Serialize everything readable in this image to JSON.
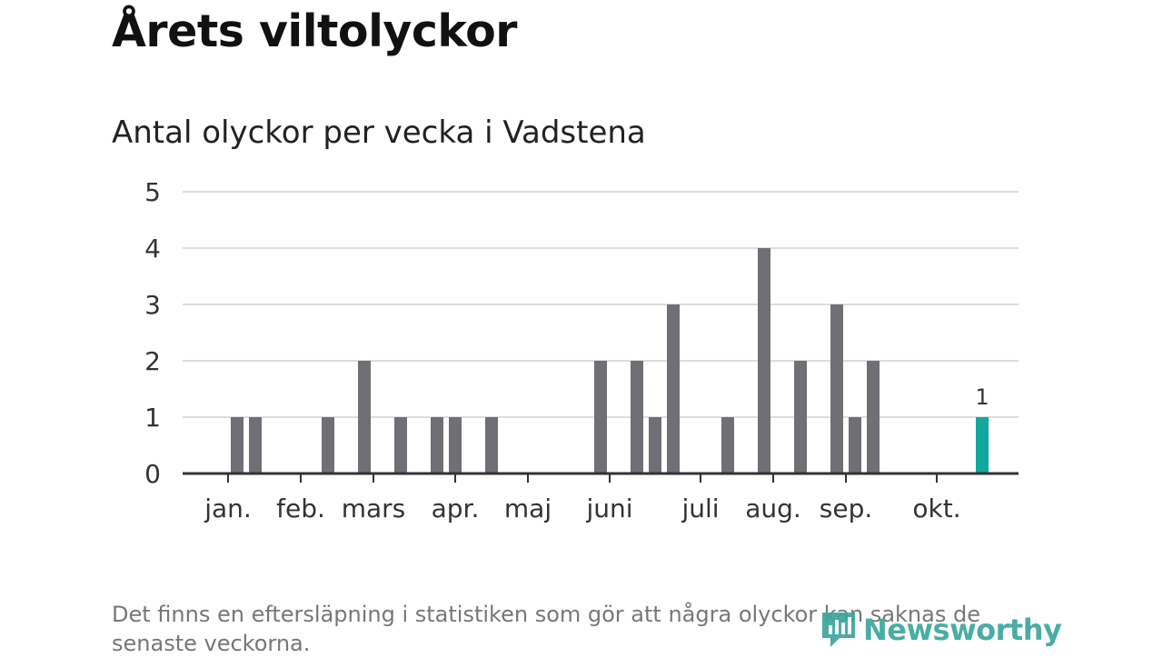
{
  "title": "Årets viltolyckor",
  "subtitle": "Antal olyckor per vecka i Vadstena",
  "footnote": "Det finns en eftersläpning i statistiken som gör att några olyckor kan saknas de senaste veckorna.",
  "logo": {
    "text": "Newsworthy",
    "icon": "newsworthy-logo-icon"
  },
  "colors": {
    "bar": "#6f6f75",
    "highlight": "#12a89d",
    "grid": "#dddddd",
    "axis": "#333333"
  },
  "chart_data": {
    "type": "bar",
    "x_unit": "week",
    "x": [
      1,
      2,
      3,
      4,
      5,
      6,
      7,
      8,
      9,
      10,
      11,
      12,
      13,
      14,
      15,
      16,
      17,
      18,
      19,
      20,
      21,
      22,
      23,
      24,
      25,
      26,
      27,
      28,
      29,
      30,
      31,
      32,
      33,
      34,
      35,
      36,
      37,
      38,
      39,
      40,
      41,
      42,
      43
    ],
    "values": [
      0,
      1,
      1,
      0,
      0,
      0,
      1,
      0,
      2,
      0,
      1,
      0,
      1,
      1,
      0,
      1,
      0,
      0,
      0,
      0,
      0,
      2,
      0,
      2,
      1,
      3,
      0,
      0,
      1,
      0,
      4,
      0,
      2,
      0,
      3,
      1,
      2,
      0,
      0,
      0,
      0,
      0,
      1
    ],
    "highlight_x": 43,
    "highlight_label": "1",
    "yticks": [
      "0",
      "1",
      "2",
      "3",
      "4",
      "5"
    ],
    "ylim": [
      0,
      5
    ],
    "xticks": [
      {
        "label": "jan.",
        "week": 1.5
      },
      {
        "label": "feb.",
        "week": 5.5
      },
      {
        "label": "mars",
        "week": 9.5
      },
      {
        "label": "apr.",
        "week": 14
      },
      {
        "label": "maj",
        "week": 18
      },
      {
        "label": "juni",
        "week": 22.5
      },
      {
        "label": "juli",
        "week": 27.5
      },
      {
        "label": "aug.",
        "week": 31.5
      },
      {
        "label": "sep.",
        "week": 35.5
      },
      {
        "label": "okt.",
        "week": 40.5
      }
    ],
    "grid": true,
    "legend": "none"
  }
}
